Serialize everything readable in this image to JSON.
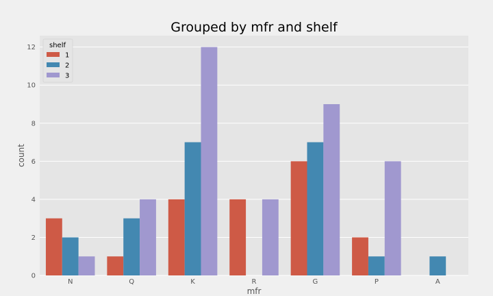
{
  "chart_data": {
    "type": "bar",
    "title": "Grouped by mfr and shelf",
    "xlabel": "mfr",
    "ylabel": "count",
    "categories": [
      "N",
      "Q",
      "K",
      "R",
      "G",
      "P",
      "A"
    ],
    "series": [
      {
        "name": "1",
        "color": "#ce5a46",
        "values": [
          3,
          1,
          4,
          4,
          6,
          2,
          0
        ]
      },
      {
        "name": "2",
        "color": "#4388b1",
        "values": [
          2,
          3,
          7,
          0,
          7,
          1,
          1
        ]
      },
      {
        "name": "3",
        "color": "#a098cf",
        "values": [
          1,
          4,
          12,
          4,
          9,
          6,
          0
        ]
      }
    ],
    "ylim": [
      0,
      12.6
    ],
    "yticks": [
      0,
      2,
      4,
      6,
      8,
      10,
      12
    ],
    "grid": true,
    "legend": {
      "title": "shelf",
      "position": "top-left"
    }
  }
}
